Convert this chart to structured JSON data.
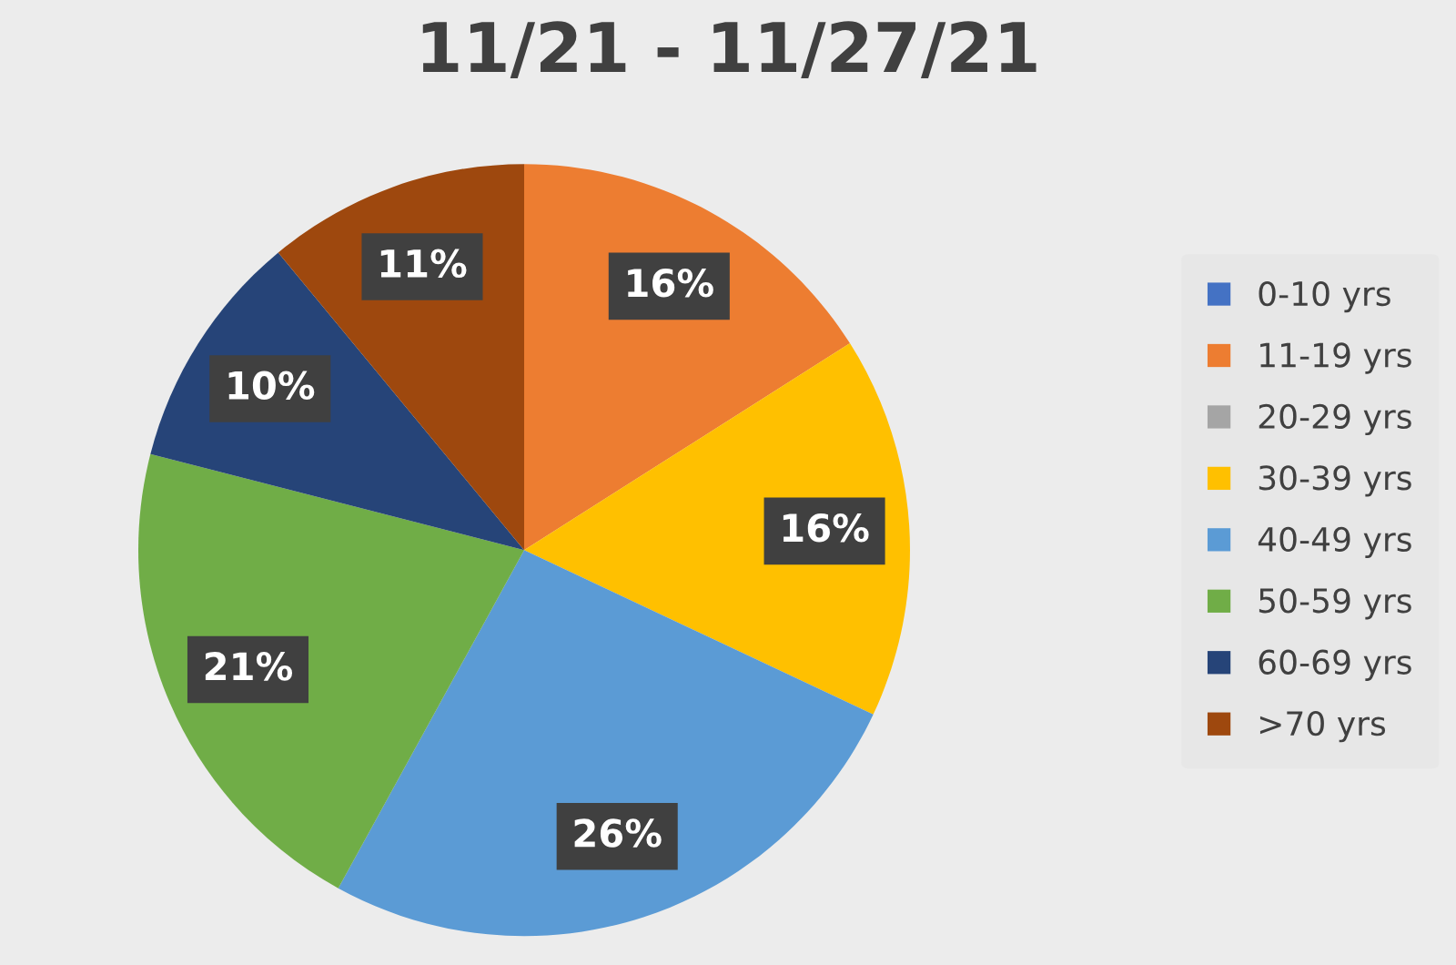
{
  "chart_data": {
    "type": "pie",
    "title": "11/21 - 11/27/21",
    "categories": [
      "0-10 yrs",
      "11-19 yrs",
      "20-29 yrs",
      "30-39 yrs",
      "40-49 yrs",
      "50-59 yrs",
      "60-69 yrs",
      ">70 yrs"
    ],
    "values": [
      0,
      16,
      0,
      16,
      26,
      21,
      10,
      11
    ],
    "value_labels": [
      null,
      "16%",
      null,
      "16%",
      "26%",
      "21%",
      "10%",
      "11%"
    ],
    "colors": [
      "#4472c4",
      "#ed7d31",
      "#a5a5a5",
      "#ffc000",
      "#5b9bd5",
      "#70ad47",
      "#264478",
      "#9e480e"
    ],
    "legend": "right"
  }
}
